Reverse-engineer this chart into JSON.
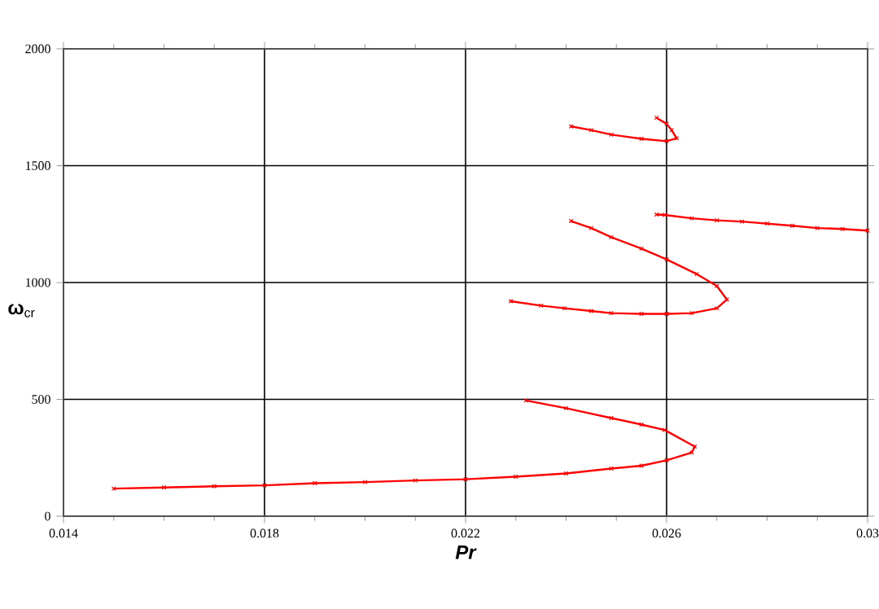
{
  "chart_data": {
    "type": "line",
    "xlabel": "Pr",
    "ylabel": "**ω**$_{cr}$",
    "xlim": [
      0.014,
      0.03
    ],
    "ylim": [
      0,
      2000
    ],
    "xticks": [
      0.014,
      0.018,
      0.022,
      0.026,
      0.03
    ],
    "yticks": [
      0,
      500,
      1000,
      1500,
      2000
    ],
    "grid": true,
    "marker": "cross",
    "line_style": "solid",
    "series": [
      {
        "color": "#ff0000",
        "x": [
          0.015,
          0.016,
          0.017,
          0.018,
          0.019,
          0.02,
          0.021,
          0.022,
          0.023,
          0.024,
          0.0249,
          0.0255,
          0.026,
          0.0265,
          0.02656,
          0.02596,
          0.0255,
          0.0249,
          0.024,
          0.0232
        ],
        "values": [
          118,
          123,
          128,
          132,
          141,
          146,
          153,
          158,
          169,
          183,
          204,
          216,
          239,
          272,
          298,
          369,
          392,
          420,
          462,
          495
        ]
      },
      {
        "color": "#ff0000",
        "x": [
          0.0229,
          0.0235,
          0.02397,
          0.0245,
          0.0249,
          0.0255,
          0.026,
          0.0265,
          0.027,
          0.0272,
          0.027,
          0.0266,
          0.026,
          0.0255,
          0.0249,
          0.0245,
          0.0241
        ],
        "values": [
          920,
          901,
          890,
          878,
          869,
          866,
          866,
          869,
          890,
          927,
          985,
          1036,
          1099,
          1145,
          1194,
          1233,
          1263
        ]
      },
      {
        "color": "#ff0000",
        "x": [
          0.0258,
          0.02596,
          0.0265,
          0.027,
          0.0275,
          0.028,
          0.0285,
          0.029,
          0.0295,
          0.03
        ],
        "values": [
          1291,
          1289,
          1275,
          1266,
          1261,
          1252,
          1243,
          1233,
          1229,
          1222
        ]
      },
      {
        "color": "#ff0000",
        "x": [
          0.0241,
          0.0245,
          0.0249,
          0.0255,
          0.026,
          0.0262,
          0.0261,
          0.026,
          0.0258
        ],
        "values": [
          1668,
          1652,
          1633,
          1615,
          1605,
          1617,
          1652,
          1679,
          1705
        ]
      }
    ]
  }
}
